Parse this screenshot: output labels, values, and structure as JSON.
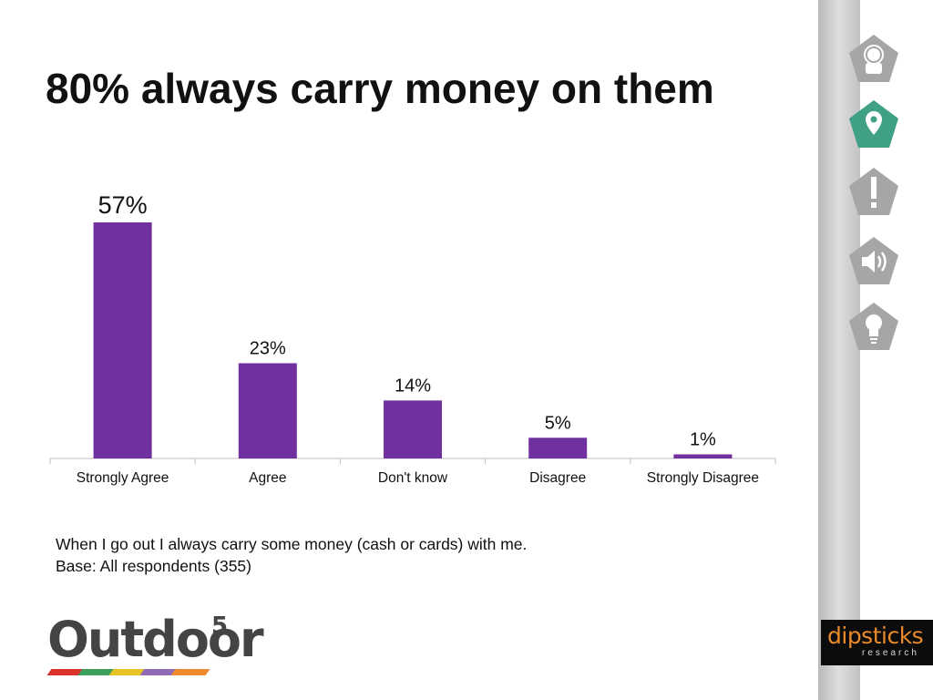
{
  "slide": {
    "title": "80% always carry money on them",
    "caption_line1": "When I go out I always carry some money (cash or cards) with me.",
    "caption_line2": "Base: All respondents (355)"
  },
  "colors": {
    "bar": "#7030a0",
    "axis": "#bfbfbf",
    "icon_gray": "#a6a6a6",
    "icon_active": "#3fa085"
  },
  "sidebar": {
    "icons": [
      "person-icon",
      "location-pin-icon",
      "exclamation-icon",
      "speaker-icon",
      "lightbulb-icon"
    ],
    "active_index": 1
  },
  "logos": {
    "outdoor_word": "Outdoor",
    "outdoor_sup": "5",
    "dipsticks_word": "dipsticks",
    "dipsticks_sub": "research"
  },
  "chart_data": {
    "type": "bar",
    "categories": [
      "Strongly Agree",
      "Agree",
      "Don't know",
      "Disagree",
      "Strongly Disagree"
    ],
    "values": [
      57,
      23,
      14,
      5,
      1
    ],
    "labels": [
      "57%",
      "23%",
      "14%",
      "5%",
      "1%"
    ],
    "unit": "%",
    "ylim": [
      0,
      57
    ],
    "grid": false,
    "legend": "none"
  }
}
